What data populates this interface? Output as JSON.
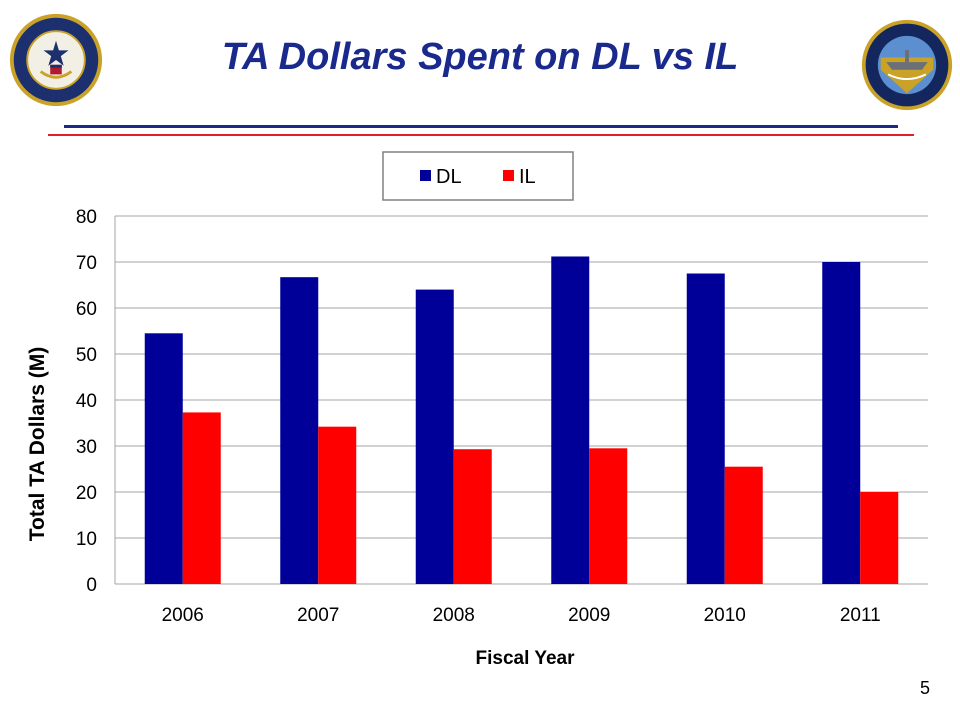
{
  "slide": {
    "title": "TA Dollars Spent on DL vs IL",
    "page_number": "5",
    "left_seal_icon": "navy-seal-icon",
    "right_seal_icon": "netc-seal-icon",
    "colors": {
      "title": "#1a2a8c",
      "rule_blue": "#1a2a8c",
      "rule_red": "#e0202a"
    }
  },
  "chart_data": {
    "type": "bar",
    "categories": [
      "2006",
      "2007",
      "2008",
      "2009",
      "2010",
      "2011"
    ],
    "series": [
      {
        "name": "DL",
        "color": "#000099",
        "values": [
          54.5,
          66.7,
          64.0,
          71.2,
          67.5,
          70.0
        ]
      },
      {
        "name": "IL",
        "color": "#ff0000",
        "values": [
          37.3,
          34.2,
          29.3,
          29.5,
          25.5,
          20.0
        ]
      }
    ],
    "title": "",
    "xlabel": "Fiscal Year",
    "ylabel": "Total TA Dollars (M)",
    "ylim": [
      0,
      80
    ],
    "yticks": [
      0,
      10,
      20,
      30,
      40,
      50,
      60,
      70,
      80
    ],
    "grid": true,
    "legend": "top-center"
  }
}
